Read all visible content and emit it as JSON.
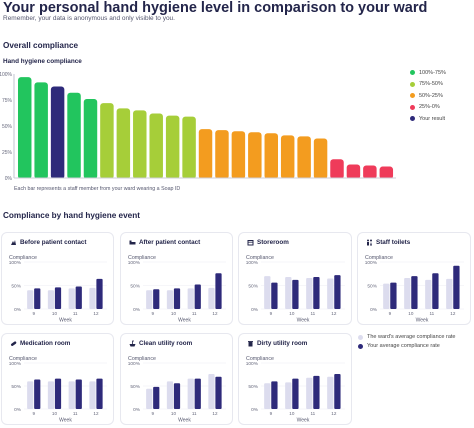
{
  "header": {
    "title": "Your personal hand hygiene level in comparison to your ward",
    "subtitle": "Remember, your data is anonymous and only visible to you."
  },
  "overall": {
    "heading": "Overall compliance",
    "chart_label": "Hand hygiene compliance",
    "note": "Each bar represents a staff member from your ward wearing a Soap ID",
    "legend": [
      {
        "label": "100%-75%",
        "color": "#22c55e"
      },
      {
        "label": "75%-50%",
        "color": "#a6ce39"
      },
      {
        "label": "50%-25%",
        "color": "#f39c1f"
      },
      {
        "label": "25%-0%",
        "color": "#ef3b5a"
      },
      {
        "label": "Your result",
        "color": "#2e2a7a"
      }
    ]
  },
  "events": {
    "heading": "Compliance by hand hygiene event",
    "legend_average": "The ward's average compliance rate",
    "legend_yours": "Your average compliance rate",
    "colors": {
      "average": "#dcdcee",
      "yours": "#2e2a7a"
    }
  },
  "chart_data": [
    {
      "type": "bar",
      "title": "Hand hygiene compliance",
      "xlabel": "",
      "ylabel": "",
      "yticks": [
        "100%",
        "75%",
        "50%",
        "25%",
        "0%"
      ],
      "ylim": [
        0,
        100
      ],
      "values": [
        97,
        92,
        88,
        82,
        76,
        72,
        67,
        65,
        62,
        60,
        59,
        47,
        46,
        45,
        44,
        43,
        41,
        40,
        38,
        18,
        13,
        12,
        11
      ],
      "highlight_index": 2,
      "colors": [
        "#22c55e",
        "#22c55e",
        "#2e2a7a",
        "#22c55e",
        "#22c55e",
        "#a6ce39",
        "#a6ce39",
        "#a6ce39",
        "#a6ce39",
        "#a6ce39",
        "#a6ce39",
        "#f39c1f",
        "#f39c1f",
        "#f39c1f",
        "#f39c1f",
        "#f39c1f",
        "#f39c1f",
        "#f39c1f",
        "#f39c1f",
        "#ef3b5a",
        "#ef3b5a",
        "#ef3b5a",
        "#ef3b5a"
      ]
    },
    {
      "type": "bar",
      "title": "Before patient contact",
      "icon": "hands-icon",
      "ylabel": "Compliance",
      "xlabel": "Week",
      "categories": [
        "9",
        "10",
        "11",
        "12"
      ],
      "ylim": [
        0,
        100
      ],
      "yticks": [
        "100%",
        "50%",
        "0%"
      ],
      "series": [
        {
          "name": "The ward's average compliance rate",
          "values": [
            40,
            40,
            44,
            45
          ]
        },
        {
          "name": "Your average compliance rate",
          "values": [
            44,
            46,
            48,
            64
          ]
        }
      ]
    },
    {
      "type": "bar",
      "title": "After patient contact",
      "icon": "bed-icon",
      "ylabel": "Compliance",
      "xlabel": "Week",
      "categories": [
        "9",
        "10",
        "11",
        "12"
      ],
      "ylim": [
        0,
        100
      ],
      "yticks": [
        "100%",
        "50%",
        "0%"
      ],
      "series": [
        {
          "name": "The ward's average compliance rate",
          "values": [
            40,
            40,
            44,
            45
          ]
        },
        {
          "name": "Your average compliance rate",
          "values": [
            42,
            44,
            52,
            76
          ]
        }
      ]
    },
    {
      "type": "bar",
      "title": "Storeroom",
      "icon": "box-icon",
      "ylabel": "Compliance",
      "xlabel": "Week",
      "categories": [
        "9",
        "10",
        "11",
        "12"
      ],
      "ylim": [
        0,
        100
      ],
      "yticks": [
        "100%",
        "50%",
        "0%"
      ],
      "series": [
        {
          "name": "The ward's average compliance rate",
          "values": [
            70,
            68,
            66,
            65
          ]
        },
        {
          "name": "Your average compliance rate",
          "values": [
            56,
            62,
            68,
            72
          ]
        }
      ]
    },
    {
      "type": "bar",
      "title": "Staff toilets",
      "icon": "toilet-icon",
      "ylabel": "Compliance",
      "xlabel": "Week",
      "categories": [
        "9",
        "10",
        "11",
        "12"
      ],
      "ylim": [
        0,
        100
      ],
      "yticks": [
        "100%",
        "50%",
        "0%"
      ],
      "series": [
        {
          "name": "The ward's average compliance rate",
          "values": [
            54,
            66,
            62,
            64
          ]
        },
        {
          "name": "Your average compliance rate",
          "values": [
            56,
            70,
            76,
            92
          ]
        }
      ]
    },
    {
      "type": "bar",
      "title": "Medication room",
      "icon": "pill-icon",
      "ylabel": "Compliance",
      "xlabel": "Week",
      "categories": [
        "9",
        "10",
        "11",
        "12"
      ],
      "ylim": [
        0,
        100
      ],
      "yticks": [
        "100%",
        "50%",
        "0%"
      ],
      "series": [
        {
          "name": "The ward's average compliance rate",
          "values": [
            60,
            60,
            60,
            60
          ]
        },
        {
          "name": "Your average compliance rate",
          "values": [
            64,
            66,
            64,
            66
          ]
        }
      ]
    },
    {
      "type": "bar",
      "title": "Clean utility room",
      "icon": "sink-icon",
      "ylabel": "Compliance",
      "xlabel": "Week",
      "categories": [
        "9",
        "10",
        "11",
        "12"
      ],
      "ylim": [
        0,
        100
      ],
      "yticks": [
        "100%",
        "50%",
        "0%"
      ],
      "series": [
        {
          "name": "The ward's average compliance rate",
          "values": [
            44,
            60,
            66,
            76
          ]
        },
        {
          "name": "Your average compliance rate",
          "values": [
            48,
            56,
            66,
            70
          ]
        }
      ]
    },
    {
      "type": "bar",
      "title": "Dirty utility room",
      "icon": "bin-icon",
      "ylabel": "Compliance",
      "xlabel": "Week",
      "categories": [
        "9",
        "10",
        "11",
        "12"
      ],
      "ylim": [
        0,
        100
      ],
      "yticks": [
        "100%",
        "50%",
        "0%"
      ],
      "series": [
        {
          "name": "The ward's average compliance rate",
          "values": [
            56,
            58,
            68,
            70
          ]
        },
        {
          "name": "Your average compliance rate",
          "values": [
            60,
            66,
            72,
            76
          ]
        }
      ]
    }
  ]
}
